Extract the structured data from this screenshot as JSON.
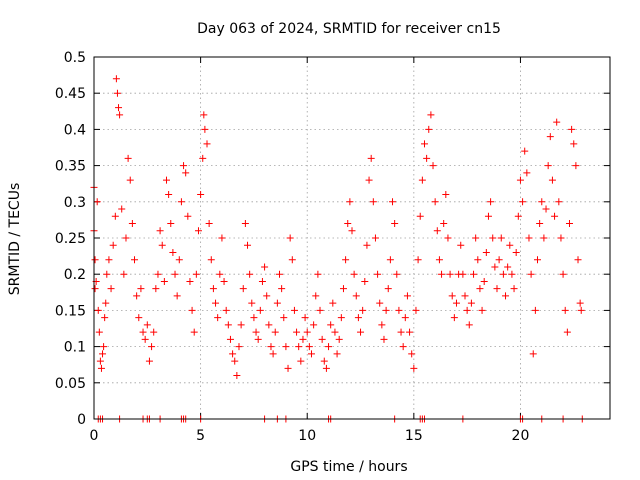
{
  "chart_data": {
    "type": "scatter",
    "title": "Day 063 of 2024, SRMTID for receiver cn15",
    "xlabel": "GPS time / hours",
    "ylabel": "SRMTID / TECUs",
    "xlim": [
      0,
      24.2
    ],
    "ylim": [
      0,
      0.5
    ],
    "xticks": [
      0,
      5,
      10,
      15,
      20
    ],
    "xtick_labels": [
      "0",
      "5",
      "10",
      "15",
      "20"
    ],
    "yticks": [
      0,
      0.05,
      0.1,
      0.15,
      0.2,
      0.25,
      0.3,
      0.35,
      0.4,
      0.45,
      0.5
    ],
    "ytick_labels": [
      "0",
      "0.05",
      "0.1",
      "0.15",
      "0.2",
      "0.25",
      "0.3",
      "0.35",
      "0.4",
      "0.45",
      "0.5"
    ],
    "grid": true,
    "marker": "+",
    "series": [
      {
        "name": "SRMTID",
        "color": "#ff0000",
        "points": [
          [
            0.0,
            0.32
          ],
          [
            0.0,
            0.26
          ],
          [
            0.05,
            0.18
          ],
          [
            0.05,
            0.22
          ],
          [
            0.1,
            0.19
          ],
          [
            0.15,
            0.3
          ],
          [
            0.2,
            0.15
          ],
          [
            0.25,
            0.12
          ],
          [
            0.3,
            0.08
          ],
          [
            0.35,
            0.07
          ],
          [
            0.4,
            0.09
          ],
          [
            0.45,
            0.1
          ],
          [
            0.5,
            0.14
          ],
          [
            0.55,
            0.16
          ],
          [
            0.6,
            0.2
          ],
          [
            0.7,
            0.22
          ],
          [
            0.8,
            0.18
          ],
          [
            0.9,
            0.24
          ],
          [
            1.0,
            0.28
          ],
          [
            1.05,
            0.47
          ],
          [
            1.1,
            0.45
          ],
          [
            1.15,
            0.43
          ],
          [
            1.2,
            0.42
          ],
          [
            1.3,
            0.29
          ],
          [
            1.4,
            0.2
          ],
          [
            1.5,
            0.25
          ],
          [
            1.6,
            0.36
          ],
          [
            1.7,
            0.33
          ],
          [
            1.8,
            0.27
          ],
          [
            1.9,
            0.22
          ],
          [
            2.0,
            0.17
          ],
          [
            2.1,
            0.14
          ],
          [
            2.2,
            0.18
          ],
          [
            2.3,
            0.12
          ],
          [
            2.4,
            0.11
          ],
          [
            2.5,
            0.13
          ],
          [
            2.6,
            0.08
          ],
          [
            2.7,
            0.1
          ],
          [
            2.8,
            0.12
          ],
          [
            2.9,
            0.18
          ],
          [
            3.0,
            0.2
          ],
          [
            3.1,
            0.26
          ],
          [
            3.2,
            0.24
          ],
          [
            3.3,
            0.19
          ],
          [
            3.4,
            0.33
          ],
          [
            3.5,
            0.31
          ],
          [
            3.6,
            0.27
          ],
          [
            3.7,
            0.23
          ],
          [
            3.8,
            0.2
          ],
          [
            3.9,
            0.17
          ],
          [
            4.0,
            0.22
          ],
          [
            4.1,
            0.3
          ],
          [
            4.2,
            0.35
          ],
          [
            4.3,
            0.34
          ],
          [
            4.4,
            0.28
          ],
          [
            4.5,
            0.19
          ],
          [
            4.6,
            0.15
          ],
          [
            4.7,
            0.12
          ],
          [
            4.8,
            0.2
          ],
          [
            4.9,
            0.26
          ],
          [
            5.0,
            0.31
          ],
          [
            5.1,
            0.36
          ],
          [
            5.15,
            0.42
          ],
          [
            5.2,
            0.4
          ],
          [
            5.3,
            0.38
          ],
          [
            5.4,
            0.27
          ],
          [
            5.5,
            0.22
          ],
          [
            5.6,
            0.18
          ],
          [
            5.7,
            0.16
          ],
          [
            5.8,
            0.14
          ],
          [
            5.9,
            0.2
          ],
          [
            6.0,
            0.25
          ],
          [
            6.1,
            0.19
          ],
          [
            6.2,
            0.15
          ],
          [
            6.3,
            0.13
          ],
          [
            6.4,
            0.11
          ],
          [
            6.5,
            0.09
          ],
          [
            6.6,
            0.08
          ],
          [
            6.7,
            0.06
          ],
          [
            6.8,
            0.1
          ],
          [
            6.9,
            0.13
          ],
          [
            7.0,
            0.18
          ],
          [
            7.1,
            0.27
          ],
          [
            7.2,
            0.24
          ],
          [
            7.3,
            0.2
          ],
          [
            7.4,
            0.16
          ],
          [
            7.5,
            0.14
          ],
          [
            7.6,
            0.12
          ],
          [
            7.7,
            0.11
          ],
          [
            7.8,
            0.15
          ],
          [
            7.9,
            0.19
          ],
          [
            8.0,
            0.21
          ],
          [
            8.1,
            0.17
          ],
          [
            8.2,
            0.13
          ],
          [
            8.3,
            0.1
          ],
          [
            8.4,
            0.09
          ],
          [
            8.5,
            0.12
          ],
          [
            8.6,
            0.16
          ],
          [
            8.7,
            0.2
          ],
          [
            8.8,
            0.18
          ],
          [
            8.9,
            0.14
          ],
          [
            9.0,
            0.1
          ],
          [
            9.1,
            0.07
          ],
          [
            9.2,
            0.25
          ],
          [
            9.3,
            0.22
          ],
          [
            9.4,
            0.15
          ],
          [
            9.5,
            0.12
          ],
          [
            9.6,
            0.1
          ],
          [
            9.7,
            0.08
          ],
          [
            9.8,
            0.11
          ],
          [
            9.9,
            0.14
          ],
          [
            10.0,
            0.12
          ],
          [
            10.1,
            0.1
          ],
          [
            10.2,
            0.09
          ],
          [
            10.3,
            0.13
          ],
          [
            10.4,
            0.17
          ],
          [
            10.5,
            0.2
          ],
          [
            10.6,
            0.15
          ],
          [
            10.7,
            0.11
          ],
          [
            10.8,
            0.08
          ],
          [
            10.9,
            0.07
          ],
          [
            11.0,
            0.1
          ],
          [
            11.1,
            0.13
          ],
          [
            11.2,
            0.16
          ],
          [
            11.3,
            0.12
          ],
          [
            11.4,
            0.09
          ],
          [
            11.5,
            0.11
          ],
          [
            11.6,
            0.14
          ],
          [
            11.7,
            0.18
          ],
          [
            11.8,
            0.22
          ],
          [
            11.9,
            0.27
          ],
          [
            12.0,
            0.3
          ],
          [
            12.1,
            0.26
          ],
          [
            12.2,
            0.2
          ],
          [
            12.3,
            0.17
          ],
          [
            12.4,
            0.14
          ],
          [
            12.5,
            0.12
          ],
          [
            12.6,
            0.15
          ],
          [
            12.7,
            0.19
          ],
          [
            12.8,
            0.24
          ],
          [
            12.9,
            0.33
          ],
          [
            13.0,
            0.36
          ],
          [
            13.1,
            0.3
          ],
          [
            13.2,
            0.25
          ],
          [
            13.3,
            0.2
          ],
          [
            13.4,
            0.16
          ],
          [
            13.5,
            0.13
          ],
          [
            13.6,
            0.11
          ],
          [
            13.7,
            0.15
          ],
          [
            13.8,
            0.18
          ],
          [
            13.9,
            0.22
          ],
          [
            14.0,
            0.3
          ],
          [
            14.1,
            0.27
          ],
          [
            14.2,
            0.2
          ],
          [
            14.3,
            0.15
          ],
          [
            14.4,
            0.12
          ],
          [
            14.5,
            0.1
          ],
          [
            14.6,
            0.14
          ],
          [
            14.7,
            0.17
          ],
          [
            14.8,
            0.12
          ],
          [
            14.9,
            0.09
          ],
          [
            15.0,
            0.07
          ],
          [
            15.1,
            0.15
          ],
          [
            15.2,
            0.22
          ],
          [
            15.3,
            0.28
          ],
          [
            15.4,
            0.33
          ],
          [
            15.5,
            0.38
          ],
          [
            15.6,
            0.36
          ],
          [
            15.7,
            0.4
          ],
          [
            15.8,
            0.42
          ],
          [
            15.9,
            0.35
          ],
          [
            16.0,
            0.3
          ],
          [
            16.1,
            0.26
          ],
          [
            16.2,
            0.22
          ],
          [
            16.3,
            0.2
          ],
          [
            16.4,
            0.27
          ],
          [
            16.5,
            0.31
          ],
          [
            16.6,
            0.25
          ],
          [
            16.7,
            0.2
          ],
          [
            16.8,
            0.17
          ],
          [
            16.9,
            0.14
          ],
          [
            17.0,
            0.16
          ],
          [
            17.1,
            0.2
          ],
          [
            17.2,
            0.24
          ],
          [
            17.3,
            0.2
          ],
          [
            17.4,
            0.17
          ],
          [
            17.5,
            0.15
          ],
          [
            17.6,
            0.13
          ],
          [
            17.7,
            0.16
          ],
          [
            17.8,
            0.2
          ],
          [
            17.9,
            0.25
          ],
          [
            18.0,
            0.22
          ],
          [
            18.1,
            0.18
          ],
          [
            18.2,
            0.15
          ],
          [
            18.3,
            0.19
          ],
          [
            18.4,
            0.23
          ],
          [
            18.5,
            0.28
          ],
          [
            18.6,
            0.3
          ],
          [
            18.7,
            0.25
          ],
          [
            18.8,
            0.21
          ],
          [
            18.9,
            0.18
          ],
          [
            19.0,
            0.22
          ],
          [
            19.1,
            0.25
          ],
          [
            19.2,
            0.2
          ],
          [
            19.3,
            0.17
          ],
          [
            19.4,
            0.21
          ],
          [
            19.5,
            0.24
          ],
          [
            19.6,
            0.2
          ],
          [
            19.7,
            0.18
          ],
          [
            19.8,
            0.23
          ],
          [
            19.9,
            0.28
          ],
          [
            20.0,
            0.33
          ],
          [
            20.1,
            0.3
          ],
          [
            20.2,
            0.37
          ],
          [
            20.3,
            0.34
          ],
          [
            20.4,
            0.25
          ],
          [
            20.5,
            0.2
          ],
          [
            20.6,
            0.09
          ],
          [
            20.7,
            0.15
          ],
          [
            20.8,
            0.22
          ],
          [
            20.9,
            0.27
          ],
          [
            21.0,
            0.3
          ],
          [
            21.1,
            0.25
          ],
          [
            21.2,
            0.29
          ],
          [
            21.3,
            0.35
          ],
          [
            21.4,
            0.39
          ],
          [
            21.5,
            0.33
          ],
          [
            21.6,
            0.28
          ],
          [
            21.7,
            0.41
          ],
          [
            21.8,
            0.3
          ],
          [
            21.9,
            0.25
          ],
          [
            22.0,
            0.2
          ],
          [
            22.1,
            0.15
          ],
          [
            22.2,
            0.12
          ],
          [
            22.3,
            0.27
          ],
          [
            22.4,
            0.4
          ],
          [
            22.5,
            0.38
          ],
          [
            22.6,
            0.35
          ],
          [
            22.7,
            0.22
          ],
          [
            22.8,
            0.16
          ],
          [
            22.85,
            0.15
          ],
          [
            0.2,
            0.0
          ],
          [
            0.3,
            0.0
          ],
          [
            0.4,
            0.0
          ],
          [
            1.2,
            0.0
          ],
          [
            2.3,
            0.0
          ],
          [
            2.5,
            0.0
          ],
          [
            2.6,
            0.0
          ],
          [
            3.1,
            0.0
          ],
          [
            4.1,
            0.0
          ],
          [
            4.2,
            0.0
          ],
          [
            4.3,
            0.0
          ],
          [
            5.0,
            0.0
          ],
          [
            8.0,
            0.0
          ],
          [
            8.6,
            0.0
          ],
          [
            9.0,
            0.0
          ],
          [
            11.0,
            0.0
          ],
          [
            11.1,
            0.0
          ],
          [
            14.1,
            0.0
          ],
          [
            15.3,
            0.0
          ],
          [
            15.4,
            0.0
          ],
          [
            15.5,
            0.0
          ],
          [
            17.3,
            0.0
          ],
          [
            20.0,
            0.0
          ],
          [
            20.1,
            0.0
          ],
          [
            21.0,
            0.0
          ],
          [
            22.0,
            0.0
          ],
          [
            22.9,
            0.0
          ]
        ]
      }
    ]
  }
}
